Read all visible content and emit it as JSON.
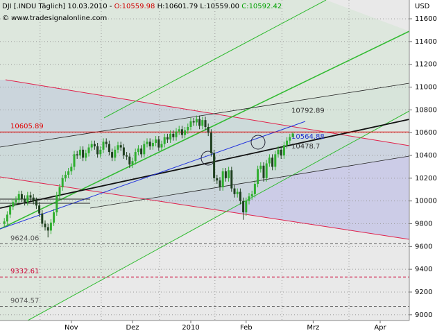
{
  "header": {
    "instrument": "DJI [.INDU Täglich] 10.03.2010 - ",
    "open": "O:10559.98",
    "high": "H:10601.79",
    "low": "L:10559.00",
    "close": "C:10592.42",
    "source": "© www.tradesignalonline.com"
  },
  "chart_data": {
    "type": "candlestick",
    "unit": "USD",
    "xlim": [
      -1,
      139
    ],
    "ylim": [
      8950,
      11765
    ],
    "xticks": [
      {
        "value": 23,
        "label": "Nov"
      },
      {
        "value": 44,
        "label": "Dez"
      },
      {
        "value": 64,
        "label": "2010"
      },
      {
        "value": 83,
        "label": "Feb"
      },
      {
        "value": 106,
        "label": "Mrz"
      },
      {
        "value": 129,
        "label": "Apr"
      }
    ],
    "yticks": [
      9000,
      9200,
      9400,
      9600,
      9800,
      10000,
      10200,
      10400,
      10600,
      10800,
      11000,
      11200,
      11400,
      11600
    ],
    "grid": true,
    "up_color": "#2fae2f",
    "down_color": "#1f3f1f",
    "open": [
      9800,
      9820,
      9880,
      9950,
      9990,
      10010,
      10060,
      10020,
      9990,
      10050,
      10030,
      10000,
      9960,
      9890,
      9800,
      9770,
      9740,
      9810,
      9900,
      10050,
      10120,
      10200,
      10230,
      10260,
      10300,
      10410,
      10400,
      10450,
      10380,
      10420,
      10470,
      10500,
      10480,
      10410,
      10450,
      10520,
      10500,
      10430,
      10380,
      10450,
      10490,
      10470,
      10400,
      10390,
      10320,
      10350,
      10430,
      10460,
      10410,
      10500,
      10520,
      10480,
      10510,
      10540,
      10470,
      10500,
      10560,
      10540,
      10590,
      10560,
      10610,
      10630,
      10580,
      10620,
      10650,
      10700,
      10690,
      10720,
      10660,
      10710,
      10650,
      10600,
      10420,
      10200,
      10180,
      10120,
      10260,
      10200,
      10270,
      10110,
      10060,
      10080,
      10000,
      9900,
      10000,
      10040,
      10060,
      10150,
      10280,
      10310,
      10200,
      10330,
      10380,
      10300,
      10410,
      10450,
      10400,
      10490,
      10530,
      10559.98
    ],
    "high": [
      9850,
      9910,
      9980,
      10020,
      10040,
      10090,
      10090,
      10050,
      10080,
      10080,
      10060,
      10030,
      9990,
      9920,
      9830,
      9800,
      9840,
      9930,
      10080,
      10150,
      10230,
      10260,
      10290,
      10330,
      10440,
      10440,
      10480,
      10480,
      10450,
      10500,
      10530,
      10530,
      10510,
      10480,
      10550,
      10550,
      10530,
      10460,
      10480,
      10520,
      10520,
      10500,
      10430,
      10420,
      10380,
      10460,
      10490,
      10490,
      10530,
      10550,
      10550,
      10540,
      10570,
      10570,
      10530,
      10590,
      10590,
      10620,
      10620,
      10640,
      10660,
      10660,
      10650,
      10680,
      10730,
      10730,
      10750,
      10750,
      10740,
      10740,
      10680,
      10630,
      10450,
      10230,
      10210,
      10290,
      10290,
      10300,
      10300,
      10140,
      10110,
      10110,
      10030,
      10030,
      10070,
      10090,
      10180,
      10310,
      10340,
      10340,
      10360,
      10410,
      10410,
      10440,
      10480,
      10480,
      10520,
      10560,
      10590,
      10601.79
    ],
    "low": [
      9770,
      9790,
      9850,
      9920,
      9960,
      9980,
      9990,
      9960,
      9960,
      10000,
      9970,
      9930,
      9860,
      9770,
      9740,
      9680,
      9710,
      9780,
      9870,
      10020,
      10090,
      10170,
      10200,
      10230,
      10270,
      10370,
      10370,
      10350,
      10350,
      10390,
      10440,
      10450,
      10380,
      10380,
      10420,
      10470,
      10400,
      10350,
      10350,
      10420,
      10440,
      10370,
      10360,
      10290,
      10290,
      10320,
      10400,
      10380,
      10380,
      10470,
      10450,
      10450,
      10480,
      10440,
      10440,
      10470,
      10510,
      10510,
      10530,
      10530,
      10580,
      10550,
      10550,
      10590,
      10620,
      10660,
      10660,
      10630,
      10630,
      10620,
      10570,
      10390,
      10170,
      10150,
      10090,
      10090,
      10170,
      10170,
      10080,
      10030,
      10030,
      9970,
      9835,
      9870,
      9970,
      10010,
      10030,
      10120,
      10250,
      10170,
      10170,
      10300,
      10270,
      10270,
      10380,
      10370,
      10370,
      10460,
      10500,
      10559.0
    ],
    "close": [
      9820,
      9880,
      9950,
      9990,
      10010,
      10060,
      10020,
      9990,
      10050,
      10030,
      10000,
      9960,
      9890,
      9800,
      9770,
      9740,
      9810,
      9900,
      10050,
      10120,
      10200,
      10230,
      10260,
      10300,
      10410,
      10400,
      10450,
      10380,
      10420,
      10470,
      10500,
      10480,
      10410,
      10450,
      10520,
      10500,
      10430,
      10380,
      10450,
      10490,
      10470,
      10400,
      10390,
      10320,
      10350,
      10430,
      10460,
      10410,
      10500,
      10520,
      10480,
      10510,
      10540,
      10470,
      10500,
      10560,
      10540,
      10590,
      10560,
      10610,
      10630,
      10580,
      10620,
      10650,
      10700,
      10690,
      10720,
      10660,
      10710,
      10650,
      10600,
      10420,
      10200,
      10180,
      10120,
      10260,
      10200,
      10270,
      10110,
      10060,
      10080,
      10000,
      9900,
      10000,
      10040,
      10060,
      10150,
      10280,
      10310,
      10200,
      10330,
      10380,
      10300,
      10410,
      10450,
      10400,
      10490,
      10530,
      10560,
      10592.42
    ],
    "levels": [
      {
        "value": 10605.89,
        "color": "#e00000",
        "style": "solid"
      },
      {
        "value": 9624.06,
        "color": "#555555",
        "style": "dashed"
      },
      {
        "value": 9332.61,
        "color": "#cc0033",
        "style": "dashed"
      },
      {
        "value": 9074.57,
        "color": "#555555",
        "style": "dashed"
      }
    ],
    "annotations": [
      {
        "value": 10792.89,
        "color": "#333333"
      },
      {
        "value": 10564.88,
        "color": "#2233cc"
      },
      {
        "value": 10478.7,
        "color": "#333333"
      }
    ]
  }
}
